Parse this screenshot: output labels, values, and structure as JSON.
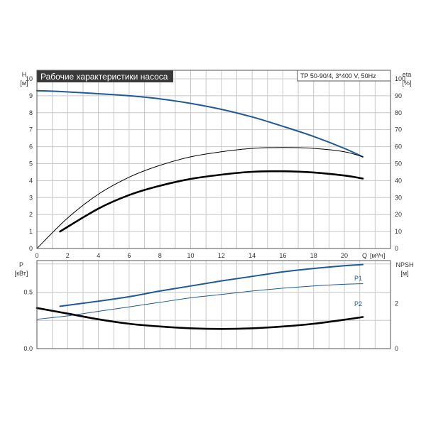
{
  "title": "Рабочие характеристики насоса",
  "model": "TP 50-90/4, 3*400 V, 50Hz",
  "colors": {
    "title_bg": "#3a3a3a",
    "blue": "#1f5a96",
    "black": "#000000",
    "grid": "#c8c8c8"
  },
  "chart_data": [
    {
      "type": "line",
      "panel": "upper",
      "x_axis": {
        "label": "Q",
        "unit": "[м³/ч]",
        "ticks": [
          "0",
          "2",
          "4",
          "6",
          "8",
          "10",
          "12",
          "14",
          "16",
          "18",
          "20"
        ],
        "range": [
          0,
          23
        ]
      },
      "y_left": {
        "label": "H",
        "unit": "[м]",
        "ticks": [
          "0",
          "1",
          "2",
          "3",
          "4",
          "5",
          "6",
          "7",
          "8",
          "9",
          "10"
        ],
        "range": [
          0,
          10.5
        ]
      },
      "y_right": {
        "label": "eta",
        "unit": "[%]",
        "ticks": [
          "0",
          "10",
          "20",
          "30",
          "40",
          "50",
          "60",
          "70",
          "80",
          "90",
          "100"
        ],
        "range": [
          0,
          105
        ]
      },
      "grid": true,
      "series": [
        {
          "id": "head",
          "axis": "left",
          "color": "#1f5a96",
          "width": 2,
          "x": [
            0,
            1.5,
            4,
            6,
            8,
            10,
            12,
            14,
            16,
            18,
            20,
            21.2
          ],
          "y": [
            9.3,
            9.25,
            9.12,
            9.0,
            8.82,
            8.55,
            8.2,
            7.75,
            7.2,
            6.6,
            5.9,
            5.4
          ]
        },
        {
          "id": "eta-thin",
          "axis": "right",
          "color": "#000000",
          "width": 1,
          "x": [
            0,
            2,
            4,
            6,
            8,
            10,
            12,
            14,
            16,
            18,
            20,
            21.2
          ],
          "y": [
            0,
            18,
            32,
            42,
            49,
            54,
            57,
            59,
            59.5,
            59,
            57,
            54
          ]
        },
        {
          "id": "eta-bold",
          "axis": "left",
          "color": "#000000",
          "width": 2.6,
          "x": [
            1.5,
            4,
            6,
            8,
            10,
            12,
            14,
            16,
            18,
            20,
            21.2
          ],
          "y": [
            1.0,
            2.35,
            3.15,
            3.7,
            4.1,
            4.35,
            4.52,
            4.55,
            4.48,
            4.3,
            4.12
          ]
        }
      ]
    },
    {
      "type": "line",
      "panel": "lower",
      "x_axis": {
        "ticks": [],
        "range": [
          0,
          23
        ]
      },
      "y_left": {
        "label": "P",
        "unit": "[кВт]",
        "ticks": [
          "0.0",
          "0.5"
        ],
        "range": [
          0,
          0.78
        ]
      },
      "y_right": {
        "label": "NPSH",
        "unit": "[м]",
        "ticks": [
          "0",
          "2"
        ],
        "range": [
          0,
          3.9
        ]
      },
      "grid": true,
      "series": [
        {
          "name": "P1",
          "axis": "left",
          "color": "#1f5a96",
          "width": 2,
          "x": [
            1.5,
            4,
            6,
            8,
            10,
            12,
            14,
            16,
            18,
            20,
            21.2
          ],
          "y": [
            0.375,
            0.42,
            0.46,
            0.51,
            0.555,
            0.6,
            0.64,
            0.68,
            0.71,
            0.735,
            0.745
          ]
        },
        {
          "name": "P2",
          "axis": "left",
          "color": "#1f5a96",
          "width": 1,
          "x": [
            0,
            2,
            4,
            6,
            8,
            10,
            12,
            14,
            16,
            18,
            20,
            21.2
          ],
          "y": [
            0.26,
            0.29,
            0.33,
            0.37,
            0.41,
            0.45,
            0.48,
            0.51,
            0.535,
            0.555,
            0.57,
            0.575
          ]
        },
        {
          "id": "npsh",
          "axis": "right",
          "color": "#000000",
          "width": 2.6,
          "x": [
            0,
            2,
            4,
            6,
            8,
            10,
            12,
            14,
            16,
            18,
            20,
            21.2
          ],
          "y": [
            1.8,
            1.55,
            1.3,
            1.1,
            0.98,
            0.9,
            0.87,
            0.9,
            0.98,
            1.1,
            1.28,
            1.4
          ]
        }
      ]
    }
  ]
}
